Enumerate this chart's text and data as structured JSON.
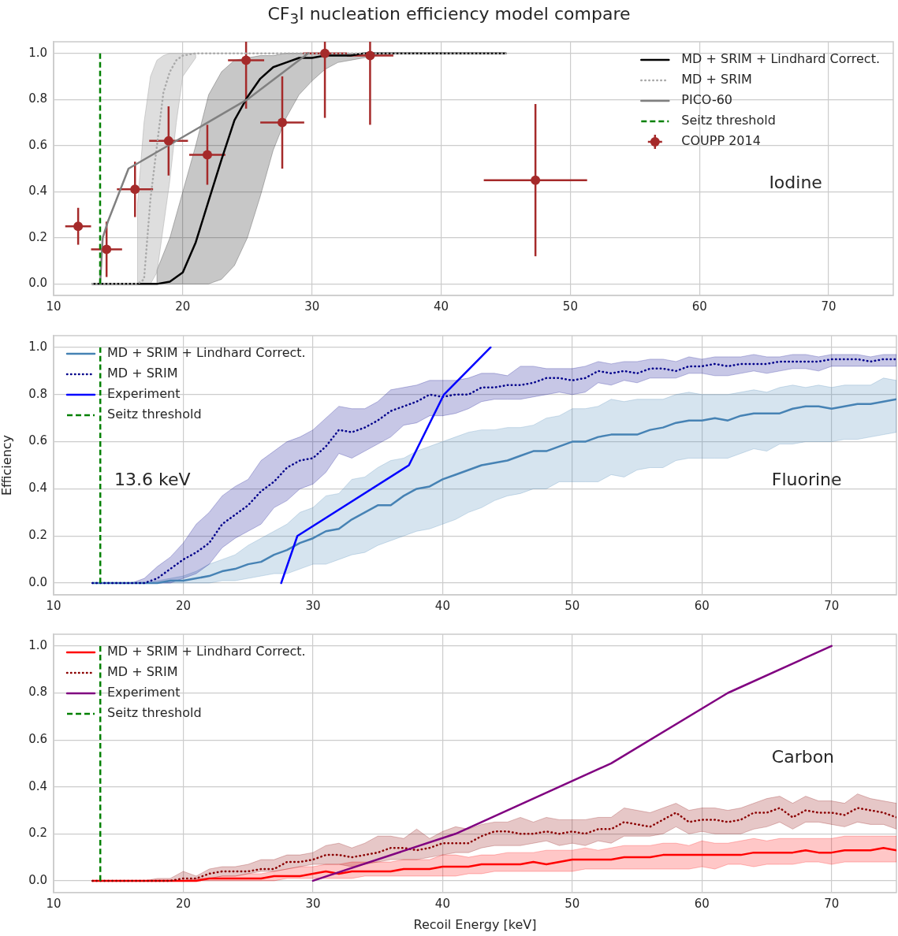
{
  "chart_data": [
    {
      "type": "line",
      "title": "CF$_{3}$I nucleation efficiency model compare",
      "xlim": [
        10,
        75
      ],
      "ylim": [
        -0.05,
        1.05
      ],
      "xticks": [
        10,
        20,
        30,
        40,
        50,
        60,
        70
      ],
      "yticks": [
        {
          "value": 0,
          "label": "0.0"
        },
        {
          "value": 0.2,
          "label": "0.2"
        },
        {
          "value": 0.4,
          "label": "0.4"
        },
        {
          "value": 0.6,
          "label": "0.6"
        },
        {
          "value": 0.8,
          "label": "0.8"
        },
        {
          "value": 1,
          "label": "1.0"
        }
      ],
      "grid": true,
      "legend": "top right",
      "annotations": [
        "Iodine"
      ],
      "series": [
        {
          "name": "MD + SRIM + Lindhard Correct.",
          "color": "#000000",
          "line_style": "solid",
          "x": [
            13,
            14,
            15,
            16,
            17,
            18,
            19,
            20,
            21,
            22,
            23,
            24,
            25,
            26,
            27,
            28,
            29,
            30,
            31,
            32,
            33,
            34,
            35,
            40,
            45
          ],
          "values": [
            0,
            0,
            0,
            0,
            0,
            0,
            0.01,
            0.05,
            0.18,
            0.36,
            0.54,
            0.71,
            0.81,
            0.89,
            0.94,
            0.96,
            0.98,
            0.98,
            0.99,
            0.99,
            0.99,
            1,
            1,
            1,
            1
          ],
          "upper": [
            null,
            null,
            null,
            null,
            null,
            0.06,
            0.2,
            0.4,
            0.6,
            0.82,
            0.92,
            0.97,
            0.98,
            0.99,
            0.99,
            1,
            1,
            1,
            1,
            1,
            1,
            1,
            1,
            null,
            null
          ],
          "lower": [
            null,
            null,
            null,
            null,
            null,
            0,
            0,
            0,
            0,
            0,
            0.02,
            0.08,
            0.2,
            0.38,
            0.58,
            0.72,
            0.82,
            0.88,
            0.93,
            0.96,
            0.97,
            0.98,
            0.99,
            null,
            null
          ]
        },
        {
          "name": "MD + SRIM",
          "color": "#a9a9a9",
          "line_style": "dotted",
          "x": [
            13,
            14,
            15,
            16,
            16.5,
            17,
            17.5,
            18,
            18.5,
            19,
            19.5,
            20,
            21,
            22,
            25,
            30,
            35,
            40,
            45
          ],
          "values": [
            0,
            0,
            0,
            0,
            0,
            0.02,
            0.37,
            0.6,
            0.83,
            0.92,
            0.97,
            0.99,
            1,
            1,
            1,
            1,
            1,
            1,
            1
          ],
          "upper": [
            null,
            null,
            null,
            null,
            0.35,
            0.7,
            0.9,
            0.97,
            0.99,
            1,
            1,
            1,
            1,
            null,
            null,
            null,
            null,
            null,
            null
          ],
          "lower": [
            null,
            null,
            null,
            null,
            0,
            0,
            0,
            0.05,
            0.25,
            0.45,
            0.7,
            0.9,
            0.98,
            null,
            null,
            null,
            null,
            null,
            null
          ]
        },
        {
          "name": "PICO-60",
          "color": "#808080",
          "line_style": "solid",
          "x": [
            13.6,
            13.8,
            14.2,
            15.8,
            25,
            29.7
          ],
          "values": [
            0,
            0.2,
            0.27,
            0.5,
            0.8,
            1
          ]
        },
        {
          "name": "Seitz threshold",
          "color": "#008000",
          "line_style": "dashed",
          "x": [
            13.6,
            13.6
          ],
          "values": [
            0,
            1
          ]
        },
        {
          "name": "COUPP 2014",
          "type": "scatter",
          "marker": "circle",
          "color": "#a52a2a",
          "x": [
            11.9,
            14.1,
            16.3,
            18.9,
            21.9,
            24.9,
            27.7,
            31,
            34.5,
            47.3
          ],
          "values": [
            0.25,
            0.15,
            0.41,
            0.62,
            0.56,
            0.97,
            0.7,
            1,
            0.99,
            0.45
          ],
          "errors": [
            0.08,
            0.12,
            0.12,
            0.15,
            0.13,
            0.21,
            0.2,
            0.28,
            0.3,
            0.33
          ],
          "xerrors": [
            1,
            1.2,
            1.4,
            1.5,
            1.4,
            1.4,
            1.7,
            1.7,
            1.8,
            4
          ]
        }
      ]
    },
    {
      "type": "line",
      "ylabel": "Efficiency",
      "xlim": [
        10,
        75
      ],
      "ylim": [
        -0.05,
        1.05
      ],
      "xticks": [
        10,
        20,
        30,
        40,
        50,
        60,
        70
      ],
      "yticks": [
        {
          "value": 0,
          "label": "0.0"
        },
        {
          "value": 0.2,
          "label": "0.2"
        },
        {
          "value": 0.4,
          "label": "0.4"
        },
        {
          "value": 0.6,
          "label": "0.6"
        },
        {
          "value": 0.8,
          "label": "0.8"
        },
        {
          "value": 1,
          "label": "1.0"
        }
      ],
      "grid": true,
      "legend": "top left",
      "annotations": [
        "13.6 keV",
        "Fluorine"
      ],
      "x": [
        13,
        14,
        15,
        16,
        17,
        18,
        19,
        20,
        21,
        22,
        23,
        24,
        25,
        26,
        27,
        28,
        29,
        30,
        31,
        32,
        33,
        34,
        35,
        36,
        37,
        38,
        39,
        40,
        41,
        42,
        43,
        44,
        45,
        46,
        47,
        48,
        49,
        50,
        51,
        52,
        53,
        54,
        55,
        56,
        57,
        58,
        59,
        60,
        61,
        62,
        63,
        64,
        65,
        66,
        67,
        68,
        69,
        70,
        71,
        72,
        73,
        74,
        75
      ],
      "series": [
        {
          "name": "MD + SRIM + Lindhard Correct.",
          "color": "#4682b4",
          "line_style": "solid",
          "values": [
            0,
            0,
            0,
            0,
            0,
            0,
            0.01,
            0.01,
            0.02,
            0.03,
            0.05,
            0.06,
            0.08,
            0.09,
            0.12,
            0.14,
            0.17,
            0.19,
            0.22,
            0.23,
            0.27,
            0.3,
            0.33,
            0.33,
            0.37,
            0.4,
            0.41,
            0.44,
            0.46,
            0.48,
            0.5,
            0.51,
            0.52,
            0.54,
            0.56,
            0.56,
            0.58,
            0.6,
            0.6,
            0.62,
            0.63,
            0.63,
            0.63,
            0.65,
            0.66,
            0.68,
            0.69,
            0.69,
            0.7,
            0.69,
            0.71,
            0.72,
            0.72,
            0.72,
            0.74,
            0.75,
            0.75,
            0.74,
            0.75,
            0.76,
            0.76,
            0.77,
            0.78
          ],
          "upper": [
            0,
            0,
            0,
            0,
            0,
            0.01,
            0.02,
            0.03,
            0.05,
            0.08,
            0.1,
            0.12,
            0.16,
            0.19,
            0.22,
            0.25,
            0.3,
            0.32,
            0.37,
            0.38,
            0.44,
            0.45,
            0.49,
            0.52,
            0.53,
            0.56,
            0.58,
            0.6,
            0.62,
            0.64,
            0.65,
            0.65,
            0.66,
            0.66,
            0.67,
            0.7,
            0.71,
            0.74,
            0.74,
            0.75,
            0.78,
            0.77,
            0.78,
            0.78,
            0.78,
            0.8,
            0.81,
            0.8,
            0.8,
            0.8,
            0.81,
            0.82,
            0.81,
            0.83,
            0.84,
            0.83,
            0.84,
            0.83,
            0.84,
            0.84,
            0.84,
            0.87,
            0.86
          ],
          "lower": [
            0,
            0,
            0,
            0,
            0,
            0,
            0,
            0,
            0,
            0,
            0.01,
            0.01,
            0.02,
            0.03,
            0.04,
            0.04,
            0.06,
            0.08,
            0.08,
            0.1,
            0.12,
            0.13,
            0.16,
            0.18,
            0.2,
            0.22,
            0.23,
            0.25,
            0.27,
            0.3,
            0.32,
            0.35,
            0.37,
            0.38,
            0.4,
            0.4,
            0.43,
            0.43,
            0.43,
            0.43,
            0.46,
            0.45,
            0.48,
            0.49,
            0.49,
            0.52,
            0.53,
            0.53,
            0.53,
            0.53,
            0.55,
            0.57,
            0.56,
            0.59,
            0.59,
            0.6,
            0.6,
            0.6,
            0.61,
            0.61,
            0.62,
            0.63,
            0.64
          ]
        },
        {
          "name": "MD + SRIM",
          "color": "#00008b",
          "line_style": "dotted",
          "values": [
            0,
            0,
            0,
            0,
            0,
            0.02,
            0.06,
            0.1,
            0.13,
            0.17,
            0.25,
            0.29,
            0.33,
            0.39,
            0.43,
            0.49,
            0.52,
            0.53,
            0.58,
            0.65,
            0.64,
            0.66,
            0.69,
            0.73,
            0.75,
            0.77,
            0.8,
            0.79,
            0.8,
            0.8,
            0.83,
            0.83,
            0.84,
            0.84,
            0.85,
            0.87,
            0.87,
            0.86,
            0.87,
            0.9,
            0.89,
            0.9,
            0.89,
            0.91,
            0.91,
            0.9,
            0.92,
            0.92,
            0.93,
            0.92,
            0.93,
            0.93,
            0.93,
            0.94,
            0.94,
            0.94,
            0.94,
            0.95,
            0.95,
            0.95,
            0.94,
            0.95,
            0.95
          ],
          "upper": [
            0,
            0,
            0,
            0,
            0.02,
            0.07,
            0.11,
            0.17,
            0.25,
            0.3,
            0.37,
            0.41,
            0.44,
            0.52,
            0.56,
            0.6,
            0.62,
            0.65,
            0.7,
            0.75,
            0.74,
            0.74,
            0.77,
            0.82,
            0.83,
            0.84,
            0.86,
            0.86,
            0.86,
            0.87,
            0.89,
            0.89,
            0.88,
            0.92,
            0.92,
            0.91,
            0.91,
            0.91,
            0.92,
            0.94,
            0.93,
            0.94,
            0.94,
            0.95,
            0.95,
            0.94,
            0.96,
            0.95,
            0.96,
            0.96,
            0.96,
            0.97,
            0.96,
            0.96,
            0.97,
            0.97,
            0.96,
            0.97,
            0.97,
            0.97,
            0.96,
            0.97,
            0.97
          ],
          "lower": [
            0,
            0,
            0,
            0,
            0,
            0,
            0,
            0.02,
            0.04,
            0.08,
            0.15,
            0.19,
            0.22,
            0.25,
            0.32,
            0.35,
            0.4,
            0.42,
            0.47,
            0.55,
            0.53,
            0.56,
            0.59,
            0.62,
            0.67,
            0.68,
            0.71,
            0.71,
            0.72,
            0.74,
            0.77,
            0.78,
            0.78,
            0.78,
            0.79,
            0.8,
            0.81,
            0.8,
            0.81,
            0.85,
            0.84,
            0.86,
            0.85,
            0.87,
            0.87,
            0.87,
            0.89,
            0.89,
            0.88,
            0.88,
            0.89,
            0.9,
            0.89,
            0.9,
            0.91,
            0.91,
            0.9,
            0.92,
            0.92,
            0.92,
            0.92,
            0.92,
            0.92
          ]
        },
        {
          "name": "Experiment",
          "color": "#0000ff",
          "line_style": "solid",
          "x": [
            27.55,
            28.8,
            37.4,
            40.1,
            43.7
          ],
          "values": [
            0,
            0.2,
            0.5,
            0.8,
            1
          ]
        },
        {
          "name": "Seitz threshold",
          "color": "#008000",
          "line_style": "dashed",
          "x": [
            13.6,
            13.6
          ],
          "values": [
            0,
            1
          ]
        }
      ]
    },
    {
      "type": "line",
      "xlabel": "Recoil Energy [keV]",
      "xlim": [
        10,
        75
      ],
      "ylim": [
        -0.05,
        1.05
      ],
      "xticks": [
        10,
        20,
        30,
        40,
        50,
        60,
        70
      ],
      "yticks": [
        {
          "value": 0,
          "label": "0.0"
        },
        {
          "value": 0.2,
          "label": "0.2"
        },
        {
          "value": 0.4,
          "label": "0.4"
        },
        {
          "value": 0.6,
          "label": "0.6"
        },
        {
          "value": 0.8,
          "label": "0.8"
        },
        {
          "value": 1,
          "label": "1.0"
        }
      ],
      "grid": true,
      "legend": "top left",
      "annotations": [
        "Carbon"
      ],
      "x": [
        13,
        14,
        15,
        16,
        17,
        18,
        19,
        20,
        21,
        22,
        23,
        24,
        25,
        26,
        27,
        28,
        29,
        30,
        31,
        32,
        33,
        34,
        35,
        36,
        37,
        38,
        39,
        40,
        41,
        42,
        43,
        44,
        45,
        46,
        47,
        48,
        49,
        50,
        51,
        52,
        53,
        54,
        55,
        56,
        57,
        58,
        59,
        60,
        61,
        62,
        63,
        64,
        65,
        66,
        67,
        68,
        69,
        70,
        71,
        72,
        73,
        74,
        75
      ],
      "series": [
        {
          "name": "MD + SRIM + Lindhard Correct.",
          "color": "#ff0000",
          "line_style": "solid",
          "values": [
            0,
            0,
            0,
            0,
            0,
            0,
            0,
            0,
            0,
            0.01,
            0.01,
            0.01,
            0.01,
            0.01,
            0.02,
            0.02,
            0.02,
            0.03,
            0.04,
            0.03,
            0.04,
            0.04,
            0.04,
            0.04,
            0.05,
            0.05,
            0.05,
            0.06,
            0.06,
            0.06,
            0.07,
            0.07,
            0.07,
            0.07,
            0.08,
            0.07,
            0.08,
            0.09,
            0.09,
            0.09,
            0.09,
            0.1,
            0.1,
            0.1,
            0.11,
            0.11,
            0.11,
            0.11,
            0.11,
            0.11,
            0.11,
            0.12,
            0.12,
            0.12,
            0.12,
            0.13,
            0.12,
            0.12,
            0.13,
            0.13,
            0.13,
            0.14,
            0.13
          ],
          "upper": [
            0,
            0,
            0,
            0,
            0,
            0,
            0,
            0,
            0.01,
            0.01,
            0.02,
            0.02,
            0.03,
            0.03,
            0.04,
            0.05,
            0.06,
            0.06,
            0.07,
            0.07,
            0.08,
            0.08,
            0.08,
            0.08,
            0.09,
            0.09,
            0.09,
            0.11,
            0.11,
            0.1,
            0.11,
            0.11,
            0.12,
            0.12,
            0.12,
            0.13,
            0.13,
            0.13,
            0.14,
            0.13,
            0.14,
            0.15,
            0.15,
            0.15,
            0.16,
            0.16,
            0.15,
            0.17,
            0.16,
            0.16,
            0.17,
            0.18,
            0.17,
            0.18,
            0.18,
            0.18,
            0.18,
            0.18,
            0.19,
            0.19,
            0.19,
            0.19,
            0.19
          ],
          "lower": [
            0,
            0,
            0,
            0,
            0,
            0,
            0,
            0,
            0,
            0,
            0,
            0,
            0,
            0,
            0,
            0.01,
            0.01,
            0.01,
            0.01,
            0.01,
            0.01,
            0.02,
            0.02,
            0.02,
            0.02,
            0.02,
            0.02,
            0.02,
            0.02,
            0.03,
            0.03,
            0.04,
            0.04,
            0.04,
            0.04,
            0.04,
            0.04,
            0.04,
            0.05,
            0.05,
            0.05,
            0.05,
            0.05,
            0.05,
            0.05,
            0.05,
            0.05,
            0.06,
            0.05,
            0.07,
            0.07,
            0.06,
            0.07,
            0.07,
            0.07,
            0.08,
            0.08,
            0.07,
            0.08,
            0.08,
            0.08,
            0.08,
            0.08
          ]
        },
        {
          "name": "MD + SRIM",
          "color": "#8b0000",
          "line_style": "dotted",
          "values": [
            0,
            0,
            0,
            0,
            0,
            0,
            0,
            0.01,
            0.01,
            0.03,
            0.04,
            0.04,
            0.04,
            0.05,
            0.05,
            0.08,
            0.08,
            0.09,
            0.11,
            0.11,
            0.1,
            0.11,
            0.12,
            0.14,
            0.14,
            0.13,
            0.14,
            0.16,
            0.16,
            0.16,
            0.19,
            0.21,
            0.21,
            0.2,
            0.2,
            0.21,
            0.2,
            0.21,
            0.2,
            0.22,
            0.22,
            0.25,
            0.24,
            0.23,
            0.26,
            0.29,
            0.25,
            0.26,
            0.26,
            0.25,
            0.26,
            0.29,
            0.29,
            0.31,
            0.27,
            0.3,
            0.29,
            0.29,
            0.28,
            0.31,
            0.3,
            0.29,
            0.27
          ],
          "upper": [
            0,
            0,
            0,
            0,
            0,
            0.01,
            0.01,
            0.04,
            0.02,
            0.05,
            0.06,
            0.06,
            0.07,
            0.09,
            0.09,
            0.11,
            0.11,
            0.12,
            0.15,
            0.16,
            0.14,
            0.16,
            0.19,
            0.19,
            0.18,
            0.22,
            0.18,
            0.21,
            0.23,
            0.22,
            0.24,
            0.25,
            0.25,
            0.27,
            0.25,
            0.27,
            0.26,
            0.26,
            0.26,
            0.27,
            0.27,
            0.31,
            0.3,
            0.29,
            0.31,
            0.33,
            0.3,
            0.31,
            0.31,
            0.3,
            0.31,
            0.33,
            0.35,
            0.36,
            0.33,
            0.36,
            0.34,
            0.34,
            0.33,
            0.37,
            0.35,
            0.34,
            0.33
          ],
          "lower": [
            0,
            0,
            0,
            0,
            0,
            0,
            0,
            0,
            0,
            0.01,
            0.02,
            0.02,
            0.03,
            0.04,
            0.04,
            0.05,
            0.06,
            0.07,
            0.07,
            0.07,
            0.06,
            0.07,
            0.08,
            0.09,
            0.09,
            0.09,
            0.1,
            0.11,
            0.12,
            0.12,
            0.14,
            0.15,
            0.15,
            0.15,
            0.16,
            0.17,
            0.15,
            0.16,
            0.15,
            0.17,
            0.16,
            0.19,
            0.19,
            0.19,
            0.2,
            0.23,
            0.2,
            0.21,
            0.2,
            0.2,
            0.2,
            0.22,
            0.23,
            0.25,
            0.22,
            0.25,
            0.25,
            0.24,
            0.23,
            0.25,
            0.24,
            0.24,
            0.22
          ]
        },
        {
          "name": "Experiment",
          "color": "#800080",
          "line_style": "solid",
          "x": [
            30,
            41,
            53,
            62,
            70
          ],
          "values": [
            0,
            0.2,
            0.5,
            0.8,
            1
          ]
        },
        {
          "name": "Seitz threshold",
          "color": "#008000",
          "line_style": "dashed",
          "x": [
            13.6,
            13.6
          ],
          "values": [
            0,
            1
          ]
        }
      ]
    }
  ]
}
